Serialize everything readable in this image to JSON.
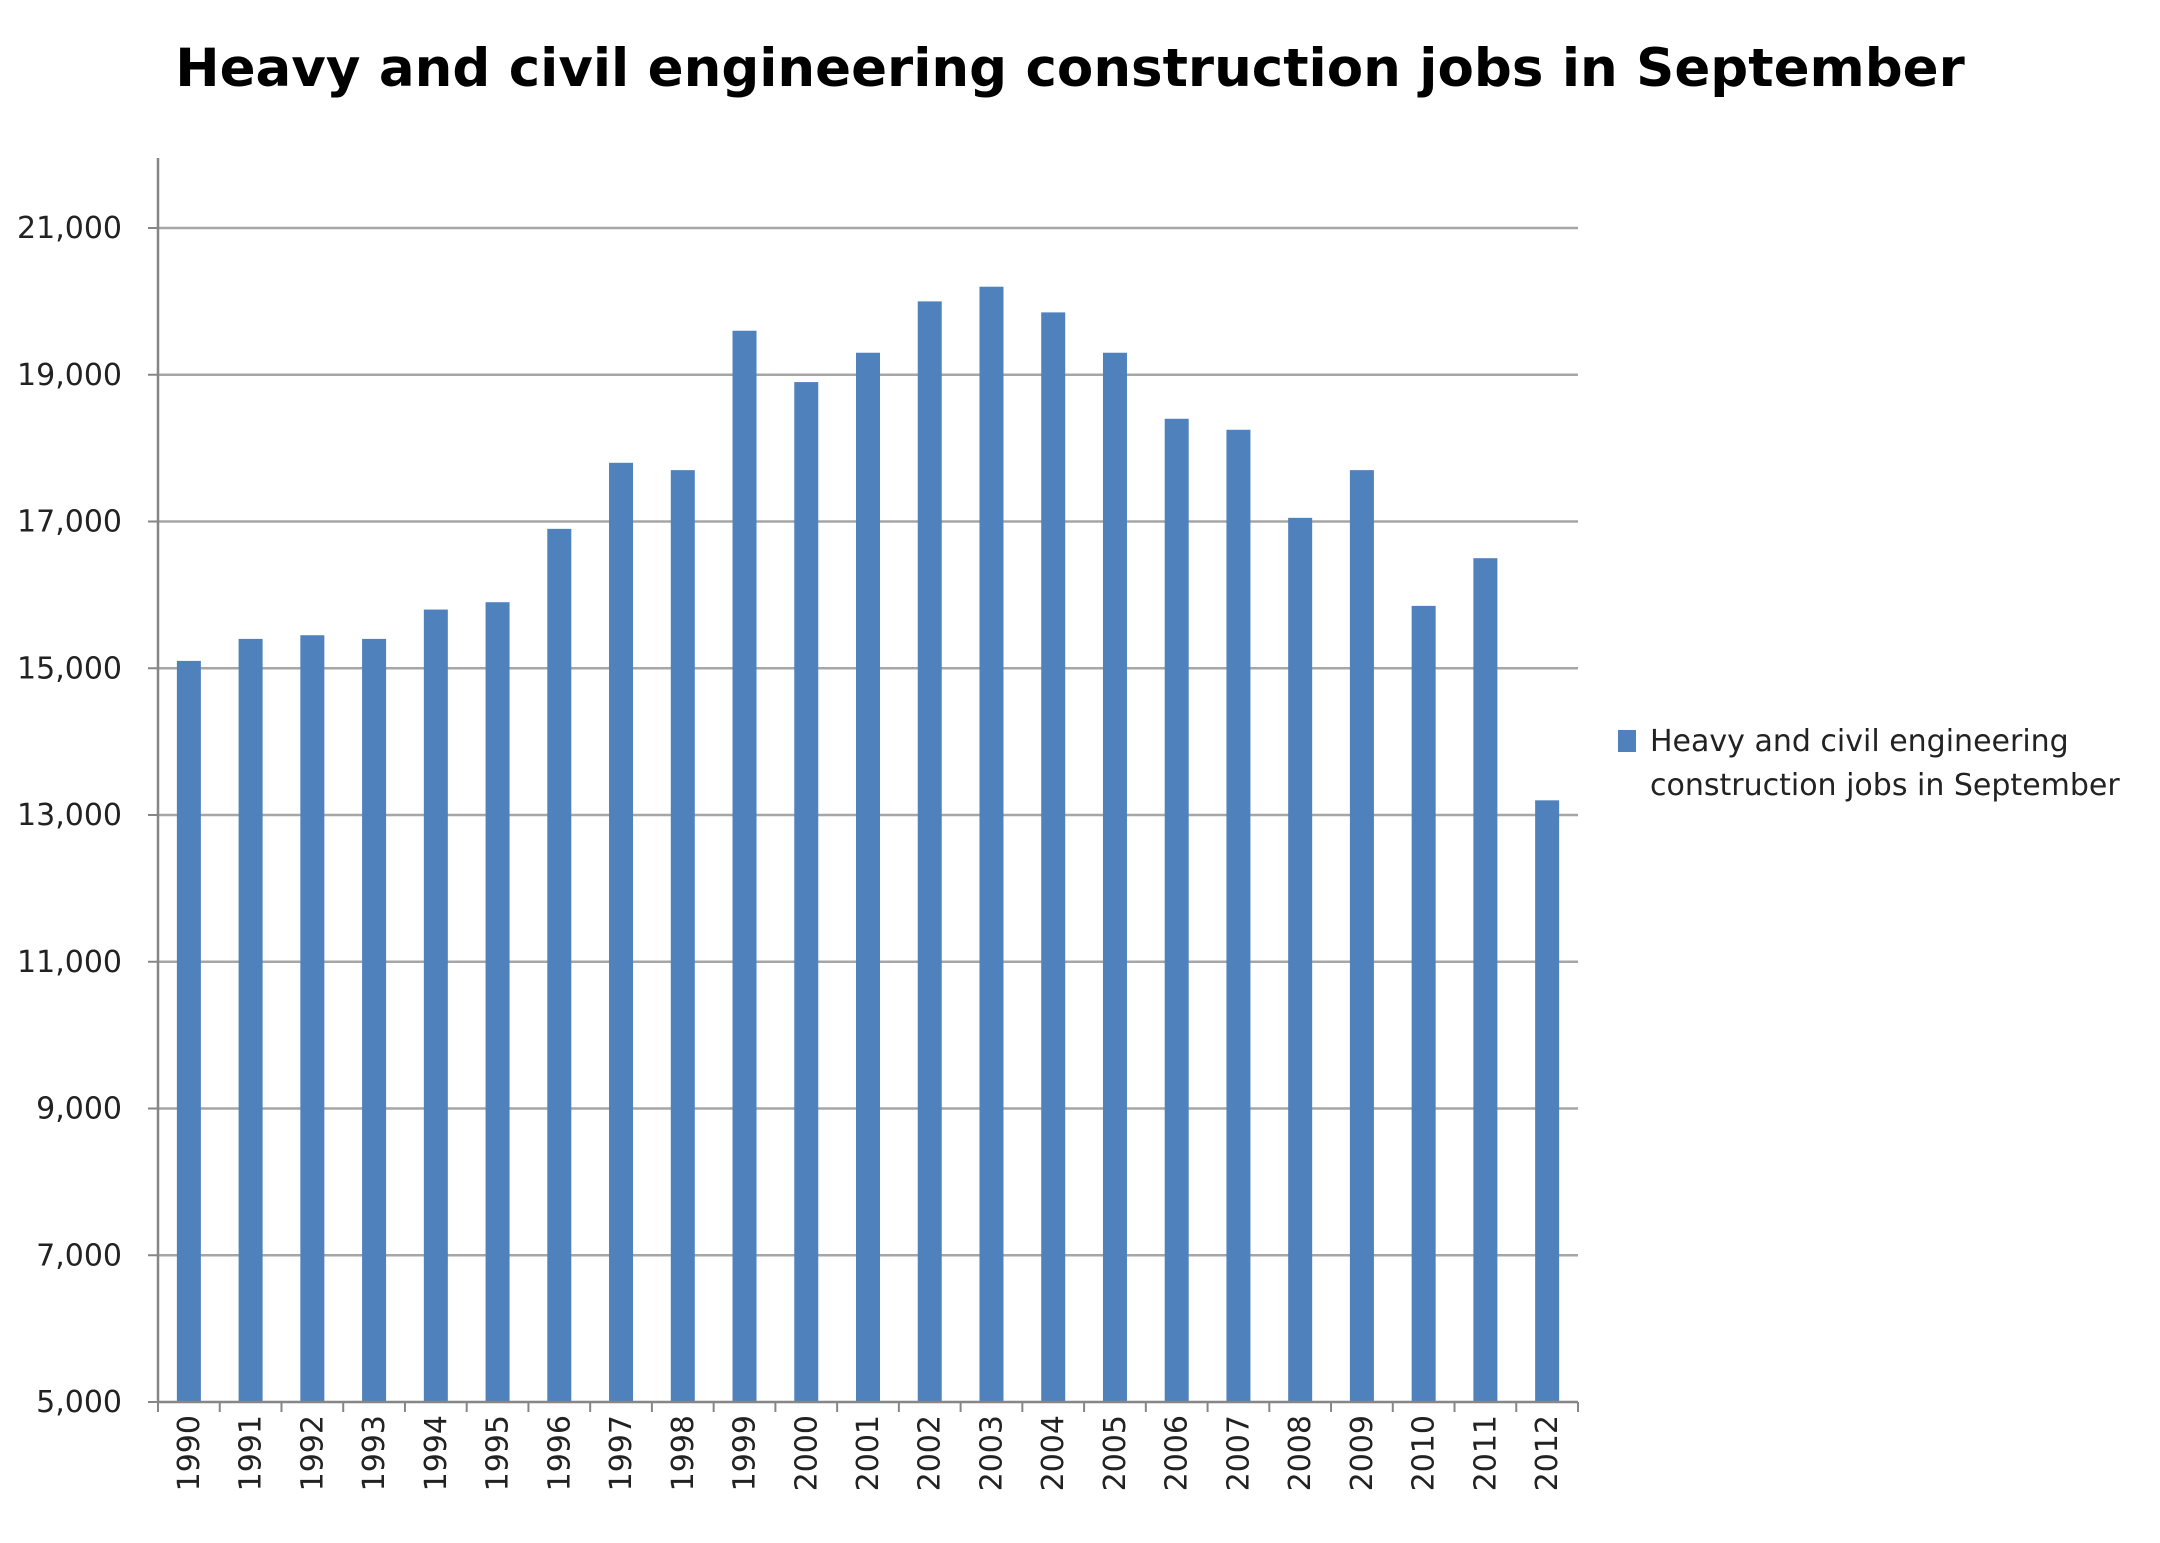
{
  "chart_data": {
    "type": "bar",
    "title": "Heavy and civil engineering construction jobs in September",
    "xlabel": "",
    "ylabel": "",
    "categories": [
      "1990",
      "1991",
      "1992",
      "1993",
      "1994",
      "1995",
      "1996",
      "1997",
      "1998",
      "1999",
      "2000",
      "2001",
      "2002",
      "2003",
      "2004",
      "2005",
      "2006",
      "2007",
      "2008",
      "2009",
      "2010",
      "2011",
      "2012"
    ],
    "series": [
      {
        "name": "Heavy and civil engineering construction jobs in September",
        "values": [
          15100,
          15400,
          15450,
          15400,
          15800,
          15900,
          16900,
          17800,
          17700,
          19600,
          18900,
          19300,
          20000,
          20200,
          19850,
          19300,
          18400,
          18250,
          17050,
          17700,
          15850,
          16500,
          13200
        ]
      }
    ],
    "ylim": [
      5000,
      22000
    ],
    "yticks": [
      5000,
      7000,
      9000,
      11000,
      13000,
      15000,
      17000,
      19000,
      21000
    ],
    "ytick_labels": [
      "5,000",
      "7,000",
      "9,000",
      "11,000",
      "13,000",
      "15,000",
      "17,000",
      "19,000",
      "21,000"
    ],
    "grid": true,
    "legend_position": "right",
    "colors": {
      "bar": "#4f81bd",
      "grid": "#a6a6a6",
      "axis": "#868686"
    }
  }
}
